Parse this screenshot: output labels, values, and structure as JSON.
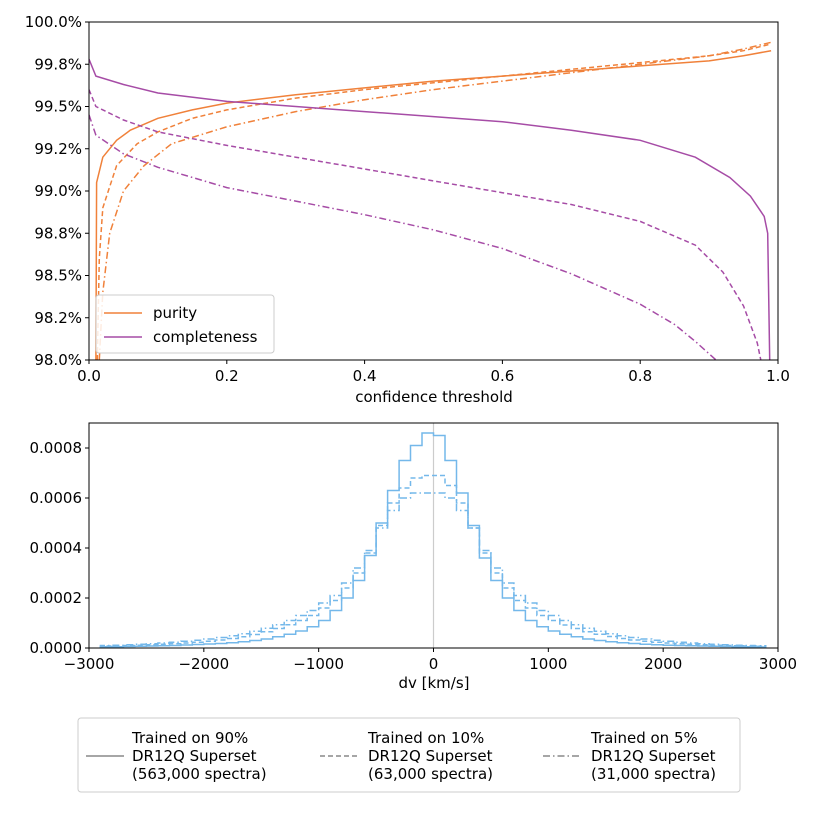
{
  "colors": {
    "purity": "#f0813a",
    "completeness": "#a64ca6",
    "histogram": "#74b8ea",
    "zero_line": "#cccccc",
    "legend_line": "#888888"
  },
  "chart_data": [
    {
      "type": "line",
      "xlabel": "confidence threshold",
      "ylabel": "",
      "xlim": [
        0,
        1
      ],
      "ylim": [
        98.0,
        100.0
      ],
      "x_tick_labels": [
        "0.0",
        "0.2",
        "0.4",
        "0.6",
        "0.8",
        "1.0"
      ],
      "y_tick_labels": [
        "98.0%",
        "98.2%",
        "98.5%",
        "98.8%",
        "99.0%",
        "99.2%",
        "99.5%",
        "99.8%",
        "100.0%"
      ],
      "legend": {
        "location": "lower-left",
        "entries": [
          "purity",
          "completeness"
        ]
      },
      "series": [
        {
          "name": "purity",
          "metric": "purity",
          "variant": "Trained on 90%",
          "style": "solid",
          "points": [
            [
              0.01,
              98.0
            ],
            [
              0.011,
              99.05
            ],
            [
              0.02,
              99.2
            ],
            [
              0.04,
              99.3
            ],
            [
              0.06,
              99.36
            ],
            [
              0.1,
              99.43
            ],
            [
              0.15,
              99.48
            ],
            [
              0.2,
              99.52
            ],
            [
              0.3,
              99.57
            ],
            [
              0.4,
              99.61
            ],
            [
              0.5,
              99.65
            ],
            [
              0.6,
              99.68
            ],
            [
              0.7,
              99.71
            ],
            [
              0.8,
              99.74
            ],
            [
              0.9,
              99.77
            ],
            [
              0.95,
              99.8
            ],
            [
              0.99,
              99.83
            ]
          ]
        },
        {
          "name": "purity",
          "metric": "purity",
          "variant": "Trained on 10%",
          "style": "dashed",
          "points": [
            [
              0.012,
              98.0
            ],
            [
              0.015,
              98.6
            ],
            [
              0.02,
              98.9
            ],
            [
              0.04,
              99.15
            ],
            [
              0.07,
              99.28
            ],
            [
              0.1,
              99.35
            ],
            [
              0.15,
              99.43
            ],
            [
              0.2,
              99.48
            ],
            [
              0.3,
              99.55
            ],
            [
              0.4,
              99.6
            ],
            [
              0.5,
              99.64
            ],
            [
              0.6,
              99.68
            ],
            [
              0.7,
              99.72
            ],
            [
              0.8,
              99.76
            ],
            [
              0.9,
              99.8
            ],
            [
              0.95,
              99.83
            ],
            [
              0.99,
              99.87
            ]
          ]
        },
        {
          "name": "purity",
          "metric": "purity",
          "variant": "Trained on 5%",
          "style": "dashdot",
          "points": [
            [
              0.015,
              98.0
            ],
            [
              0.02,
              98.4
            ],
            [
              0.03,
              98.75
            ],
            [
              0.05,
              99.0
            ],
            [
              0.08,
              99.15
            ],
            [
              0.12,
              99.28
            ],
            [
              0.2,
              99.38
            ],
            [
              0.3,
              99.47
            ],
            [
              0.4,
              99.54
            ],
            [
              0.5,
              99.6
            ],
            [
              0.6,
              99.65
            ],
            [
              0.7,
              99.7
            ],
            [
              0.8,
              99.75
            ],
            [
              0.9,
              99.8
            ],
            [
              0.95,
              99.84
            ],
            [
              0.99,
              99.88
            ]
          ]
        },
        {
          "name": "completeness",
          "metric": "completeness",
          "variant": "Trained on 90%",
          "style": "solid",
          "points": [
            [
              0.0,
              99.78
            ],
            [
              0.01,
              99.68
            ],
            [
              0.05,
              99.63
            ],
            [
              0.1,
              99.58
            ],
            [
              0.2,
              99.53
            ],
            [
              0.3,
              99.5
            ],
            [
              0.4,
              99.47
            ],
            [
              0.5,
              99.44
            ],
            [
              0.6,
              99.41
            ],
            [
              0.7,
              99.36
            ],
            [
              0.8,
              99.3
            ],
            [
              0.88,
              99.2
            ],
            [
              0.93,
              99.08
            ],
            [
              0.96,
              98.97
            ],
            [
              0.98,
              98.85
            ],
            [
              0.985,
              98.75
            ],
            [
              0.988,
              98.0
            ]
          ]
        },
        {
          "name": "completeness",
          "metric": "completeness",
          "variant": "Trained on 10%",
          "style": "dashed",
          "points": [
            [
              0.0,
              99.6
            ],
            [
              0.01,
              99.5
            ],
            [
              0.05,
              99.42
            ],
            [
              0.1,
              99.35
            ],
            [
              0.2,
              99.27
            ],
            [
              0.3,
              99.2
            ],
            [
              0.4,
              99.13
            ],
            [
              0.5,
              99.06
            ],
            [
              0.6,
              98.99
            ],
            [
              0.7,
              98.92
            ],
            [
              0.8,
              98.82
            ],
            [
              0.88,
              98.68
            ],
            [
              0.92,
              98.52
            ],
            [
              0.95,
              98.32
            ],
            [
              0.97,
              98.1
            ],
            [
              0.975,
              98.0
            ]
          ]
        },
        {
          "name": "completeness",
          "metric": "completeness",
          "variant": "Trained on 5%",
          "style": "dashdot",
          "points": [
            [
              0.0,
              99.45
            ],
            [
              0.01,
              99.33
            ],
            [
              0.05,
              99.22
            ],
            [
              0.1,
              99.14
            ],
            [
              0.2,
              99.02
            ],
            [
              0.3,
              98.94
            ],
            [
              0.4,
              98.86
            ],
            [
              0.5,
              98.77
            ],
            [
              0.6,
              98.66
            ],
            [
              0.7,
              98.51
            ],
            [
              0.8,
              98.33
            ],
            [
              0.85,
              98.21
            ],
            [
              0.88,
              98.11
            ],
            [
              0.91,
              98.0
            ]
          ]
        }
      ]
    },
    {
      "type": "histogram",
      "xlabel": "dv [km/s]",
      "ylabel": "",
      "xlim": [
        -3000,
        3000
      ],
      "ylim": [
        0,
        0.0009
      ],
      "x_tick_labels": [
        "−3000",
        "−2000",
        "−1000",
        "0",
        "1000",
        "2000",
        "3000"
      ],
      "y_tick_labels": [
        "0.0000",
        "0.0002",
        "0.0004",
        "0.0006",
        "0.0008"
      ],
      "bin_width": 100,
      "bin_edges_start": -2900,
      "zero_line": 0,
      "series": [
        {
          "name": "Trained on 90%",
          "style": "solid",
          "values": [
            5e-06,
            5e-06,
            6e-06,
            7e-06,
            8e-06,
            9e-06,
            1e-05,
            1.2e-05,
            1.4e-05,
            1.6e-05,
            1.8e-05,
            2.1e-05,
            2.5e-05,
            3e-05,
            3.6e-05,
            4.5e-05,
            5.5e-05,
            6.8e-05,
            8.5e-05,
            0.00011,
            0.00015,
            0.0002,
            0.00027,
            0.00037,
            0.0005,
            0.00063,
            0.00075,
            0.00081,
            0.00086,
            0.00085,
            0.00075,
            0.00062,
            0.00049,
            0.00036,
            0.00027,
            0.0002,
            0.00015,
            0.00011,
            8.5e-05,
            6.8e-05,
            5.5e-05,
            4.5e-05,
            3.6e-05,
            3e-05,
            2.5e-05,
            2.1e-05,
            1.8e-05,
            1.5e-05,
            1.3e-05,
            1.1e-05,
            1e-05,
            9e-06,
            8e-06,
            7e-06,
            6e-06,
            5e-06,
            5e-06,
            4e-06
          ]
        },
        {
          "name": "Trained on 10%",
          "style": "dashed",
          "values": [
            8e-06,
            9e-06,
            1e-05,
            1.1e-05,
            1.3e-05,
            1.5e-05,
            1.7e-05,
            2e-05,
            2.3e-05,
            2.7e-05,
            3.2e-05,
            3.8e-05,
            4.5e-05,
            5.4e-05,
            6.5e-05,
            7.8e-05,
            9.3e-05,
            0.00011,
            0.00013,
            0.00016,
            0.00019,
            0.00024,
            0.0003,
            0.00038,
            0.00049,
            0.00058,
            0.00064,
            0.00068,
            0.00069,
            0.00069,
            0.00065,
            0.00058,
            0.00048,
            0.00038,
            0.0003,
            0.00024,
            0.00019,
            0.00016,
            0.00013,
            0.00011,
            9.2e-05,
            7.8e-05,
            6.5e-05,
            5.5e-05,
            4.6e-05,
            3.8e-05,
            3.2e-05,
            2.7e-05,
            2.3e-05,
            2e-05,
            1.7e-05,
            1.5e-05,
            1.3e-05,
            1.1e-05,
            1e-05,
            9e-06,
            8e-06,
            7e-06
          ]
        },
        {
          "name": "Trained on 5%",
          "style": "dashdot",
          "values": [
            1e-05,
            1.1e-05,
            1.3e-05,
            1.5e-05,
            1.7e-05,
            2e-05,
            2.3e-05,
            2.7e-05,
            3.1e-05,
            3.6e-05,
            4.2e-05,
            4.9e-05,
            5.7e-05,
            6.7e-05,
            7.9e-05,
            9.3e-05,
            0.00011,
            0.00013,
            0.00015,
            0.00018,
            0.00021,
            0.00026,
            0.00032,
            0.00039,
            0.00048,
            0.00055,
            0.0006,
            0.00062,
            0.00062,
            0.00062,
            0.0006,
            0.00055,
            0.00048,
            0.00039,
            0.00032,
            0.00026,
            0.00021,
            0.00018,
            0.00015,
            0.00013,
            0.00011,
            9.3e-05,
            7.9e-05,
            6.7e-05,
            5.7e-05,
            4.9e-05,
            4.2e-05,
            3.6e-05,
            3.1e-05,
            2.7e-05,
            2.3e-05,
            2e-05,
            1.7e-05,
            1.5e-05,
            1.3e-05,
            1.1e-05,
            1e-05,
            9e-06
          ]
        }
      ]
    }
  ],
  "legend_bottom": {
    "entries": [
      {
        "line1": "Trained on 90%",
        "line2": "DR12Q Superset",
        "line3": "(563,000 spectra)",
        "style": "solid"
      },
      {
        "line1": "Trained on 10%",
        "line2": "DR12Q Superset",
        "line3": "(63,000 spectra)",
        "style": "dashed"
      },
      {
        "line1": "Trained on 5%",
        "line2": "DR12Q Superset",
        "line3": "(31,000 spectra)",
        "style": "dashdot"
      }
    ]
  }
}
